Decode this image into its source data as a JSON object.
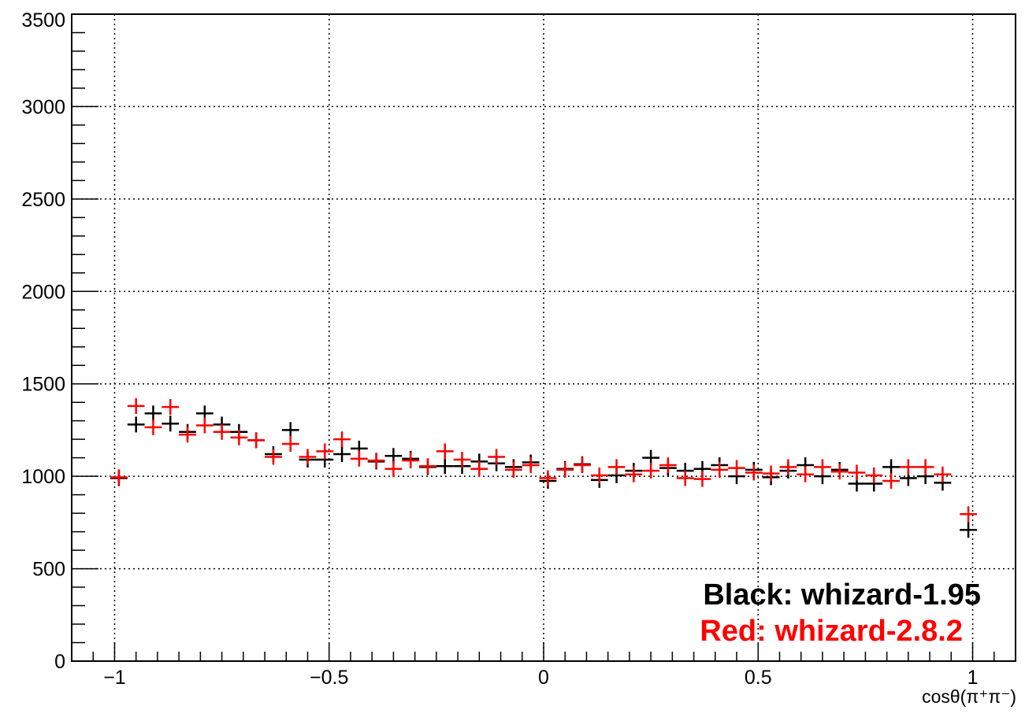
{
  "chart_data": {
    "type": "scatter",
    "xlabel": "cosθ(π⁺π⁻)",
    "ylabel": "",
    "xlim": [
      -1.1,
      1.1
    ],
    "ylim": [
      0,
      3500
    ],
    "grid": true,
    "x_ticks": [
      "−1",
      "−0.5",
      "0",
      "0.5",
      "1"
    ],
    "y_ticks": [
      "0",
      "500",
      "1000",
      "1500",
      "2000",
      "2500",
      "3000",
      "3500"
    ],
    "legend_placement": "bottom-right",
    "series": [
      {
        "name": "Black: whizard-1.95",
        "color": "#000000",
        "x": [
          -0.99,
          -0.95,
          -0.91,
          -0.87,
          -0.83,
          -0.79,
          -0.75,
          -0.71,
          -0.67,
          -0.63,
          -0.59,
          -0.55,
          -0.51,
          -0.47,
          -0.43,
          -0.39,
          -0.35,
          -0.31,
          -0.27,
          -0.23,
          -0.19,
          -0.15,
          -0.11,
          -0.07,
          -0.03,
          0.01,
          0.05,
          0.09,
          0.13,
          0.17,
          0.21,
          0.25,
          0.29,
          0.33,
          0.37,
          0.41,
          0.45,
          0.49,
          0.53,
          0.57,
          0.61,
          0.65,
          0.69,
          0.73,
          0.77,
          0.81,
          0.85,
          0.89,
          0.93,
          0.99
        ],
        "values": [
          990,
          1280,
          1340,
          1285,
          1240,
          1340,
          1280,
          1240,
          1195,
          1120,
          1250,
          1090,
          1090,
          1120,
          1150,
          1080,
          1110,
          1095,
          1050,
          1055,
          1055,
          1080,
          1070,
          1050,
          1075,
          975,
          1040,
          1065,
          980,
          1005,
          1030,
          1100,
          1045,
          1030,
          1040,
          1060,
          1000,
          1035,
          995,
          1030,
          1060,
          1000,
          1035,
          960,
          960,
          1050,
          990,
          1000,
          965,
          710
        ]
      },
      {
        "name": "Red: whizard-2.8.2",
        "color": "#ff0000",
        "x": [
          -0.99,
          -0.95,
          -0.91,
          -0.87,
          -0.83,
          -0.79,
          -0.75,
          -0.71,
          -0.67,
          -0.63,
          -0.59,
          -0.55,
          -0.51,
          -0.47,
          -0.43,
          -0.39,
          -0.35,
          -0.31,
          -0.27,
          -0.23,
          -0.19,
          -0.15,
          -0.11,
          -0.07,
          -0.03,
          0.01,
          0.05,
          0.09,
          0.13,
          0.17,
          0.21,
          0.25,
          0.29,
          0.33,
          0.37,
          0.41,
          0.45,
          0.49,
          0.53,
          0.57,
          0.61,
          0.65,
          0.69,
          0.73,
          0.77,
          0.81,
          0.85,
          0.89,
          0.93,
          0.99
        ],
        "values": [
          995,
          1380,
          1265,
          1375,
          1225,
          1275,
          1240,
          1210,
          1195,
          1105,
          1175,
          1105,
          1135,
          1200,
          1095,
          1085,
          1040,
          1085,
          1055,
          1135,
          1090,
          1040,
          1105,
          1035,
          1060,
          990,
          1035,
          1060,
          1005,
          1050,
          1010,
          1030,
          1060,
          990,
          985,
          1035,
          1045,
          1020,
          1015,
          1050,
          1010,
          1050,
          1025,
          1020,
          1005,
          975,
          1050,
          1050,
          1010,
          795
        ]
      }
    ]
  }
}
